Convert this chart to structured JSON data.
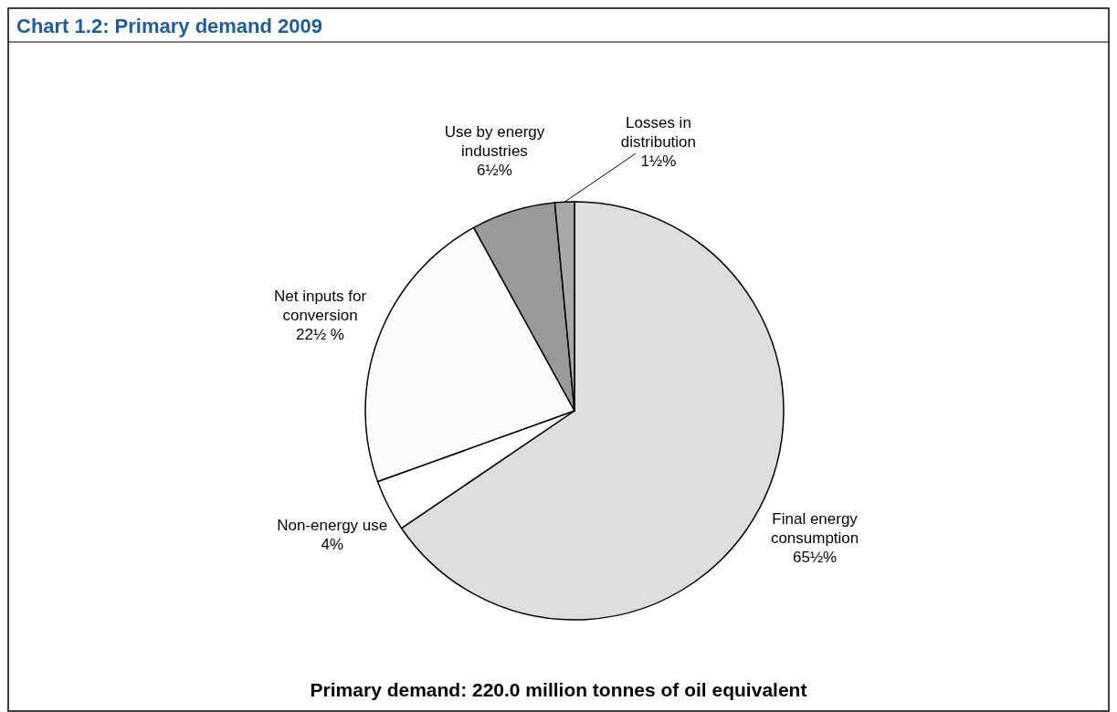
{
  "chart_data": {
    "type": "pie",
    "title": "Chart 1.2:  Primary demand 2009",
    "categories": [
      "Final energy consumption",
      "Non-energy use",
      "Net inputs for conversion",
      "Use by energy industries",
      "Losses in distribution"
    ],
    "values": [
      65.5,
      4,
      22.5,
      6.5,
      1.5
    ],
    "value_labels": [
      "65½%",
      "4%",
      "22½ %",
      "6½%",
      "1½%"
    ],
    "colors": [
      "#dddddd",
      "#ffffff",
      "#fbfbfb",
      "#999999",
      "#a8a8a8"
    ],
    "annotations": [
      "Primary demand: 220.0 million tonnes of oil equivalent"
    ]
  }
}
